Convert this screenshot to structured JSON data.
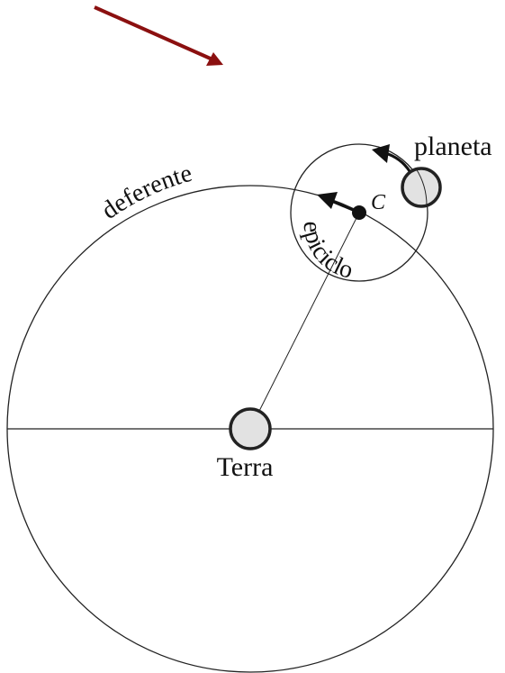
{
  "labels": {
    "planet": "planeta",
    "center": "C",
    "deferent": "deferente",
    "epicycle": "epiciclo",
    "earth": "Terra"
  }
}
